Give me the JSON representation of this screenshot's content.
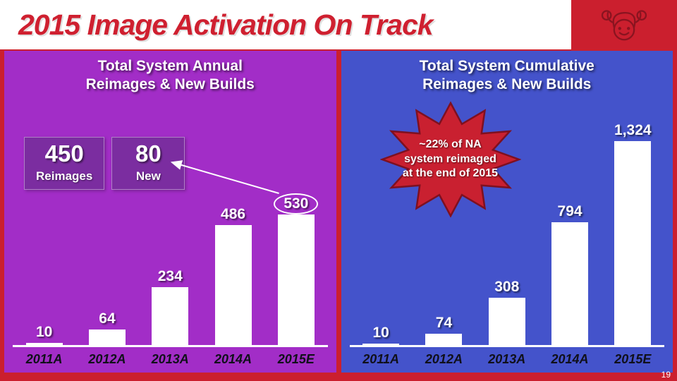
{
  "header": {
    "title": "2015 Image Activation On Track"
  },
  "page_number": "19",
  "left_panel": {
    "title_line1": "Total System Annual",
    "title_line2": "Reimages & New Builds",
    "callout": {
      "reimages_value": "450",
      "reimages_label": "Reimages",
      "new_value": "80",
      "new_label": "New"
    }
  },
  "right_panel": {
    "title_line1": "Total System Cumulative",
    "title_line2": "Reimages & New Builds",
    "burst_lines": [
      "~22% of NA",
      "system reimaged",
      "at the end of 2015"
    ]
  },
  "colors": {
    "slide_red": "#cb1f2e",
    "title_red": "#cf2030",
    "left_panel_purple": "#a22dc7",
    "callout_purple": "#7b2da0",
    "right_panel_blue": "#4453cb",
    "burst_red": "#c92030",
    "bar_white": "#ffffff"
  },
  "chart_data": [
    {
      "type": "bar",
      "title": "Total System Annual Reimages & New Builds",
      "categories": [
        "2011A",
        "2012A",
        "2013A",
        "2014A",
        "2015E"
      ],
      "values": [
        10,
        64,
        234,
        486,
        530
      ],
      "value_labels": [
        "10",
        "64",
        "234",
        "486",
        "530"
      ],
      "ylim": [
        0,
        560
      ],
      "circled_index": 4,
      "annotation": "530 estimate = 450 Reimages + 80 New",
      "legend": "none",
      "grid": false
    },
    {
      "type": "bar",
      "title": "Total System Cumulative Reimages & New Builds",
      "categories": [
        "2011A",
        "2012A",
        "2013A",
        "2014A",
        "2015E"
      ],
      "values": [
        10,
        74,
        308,
        794,
        1324
      ],
      "value_labels": [
        "10",
        "74",
        "308",
        "794",
        "1,324"
      ],
      "ylim": [
        0,
        1400
      ],
      "annotation": "~22% of NA system reimaged at the end of 2015",
      "legend": "none",
      "grid": false
    }
  ]
}
